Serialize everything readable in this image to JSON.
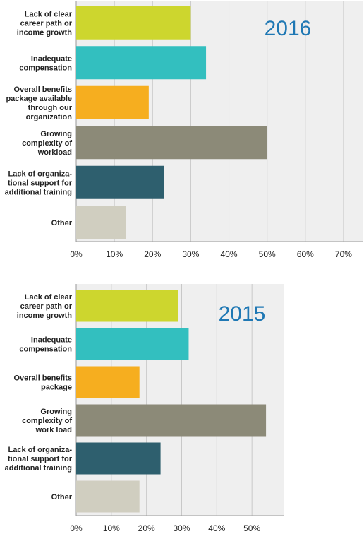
{
  "colors": {
    "plot_bg": "#efefef",
    "grid": "#c8c8c8",
    "year_text": "#1f78b4",
    "bars": [
      "#cdd62e",
      "#33bfbf",
      "#f6ae1f",
      "#8c8a78",
      "#2e5f6e",
      "#d0cec0"
    ]
  },
  "chart_data": [
    {
      "type": "bar",
      "orientation": "horizontal",
      "title": "2016",
      "categories": [
        [
          "Lack of clear",
          "career path or",
          "income growth"
        ],
        [
          "Inadequate",
          "compensation"
        ],
        [
          "Overall benefits",
          "package available",
          "through our",
          "organization"
        ],
        [
          "Growing",
          "complexity of",
          "workload"
        ],
        [
          "Lack of organiza-",
          "tional support for",
          "additional training"
        ],
        [
          "Other"
        ]
      ],
      "values": [
        30,
        34,
        19,
        50,
        23,
        13
      ],
      "unit": "%",
      "xlim": [
        0,
        75
      ],
      "xticks": [
        "0%",
        "10%",
        "20%",
        "30%",
        "40%",
        "50%",
        "60%",
        "70%"
      ],
      "grid": true
    },
    {
      "type": "bar",
      "orientation": "horizontal",
      "title": "2015",
      "categories": [
        [
          "Lack of clear",
          "career path or",
          "income growth"
        ],
        [
          "Inadequate",
          "compensation"
        ],
        [
          "Overall benefits",
          "package"
        ],
        [
          "Growing",
          "complexity of",
          "work load"
        ],
        [
          "Lack of organiza-",
          "tional support for",
          "additional training"
        ],
        [
          "Other"
        ]
      ],
      "values": [
        29,
        32,
        18,
        54,
        24,
        18
      ],
      "unit": "%",
      "xlim": [
        0,
        59
      ],
      "xticks": [
        "0%",
        "10%",
        "20%",
        "30%",
        "40%",
        "50%"
      ],
      "grid": true
    }
  ]
}
